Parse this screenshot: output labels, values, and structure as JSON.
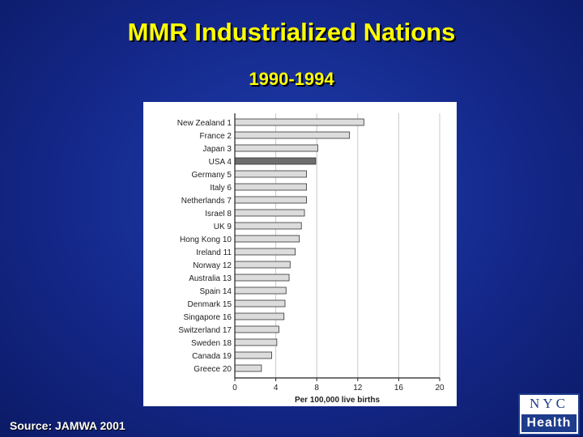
{
  "slide": {
    "title": "MMR Industrialized Nations",
    "subtitle": "1990-1994",
    "source": "Source: JAMWA 2001",
    "logo": {
      "top": "NYC",
      "bottom": "Health"
    }
  },
  "chart_data": {
    "type": "bar",
    "orientation": "horizontal",
    "xlabel": "Per 100,000 live births",
    "xlim": [
      0,
      20
    ],
    "xticks": [
      0,
      4,
      8,
      12,
      16,
      20
    ],
    "grid": true,
    "highlight": "USA 4",
    "colors": {
      "bar": "#dcdcdc",
      "highlight": "#6e6e6e",
      "outline": "#333333"
    },
    "categories": [
      "New Zealand 1",
      "France 2",
      "Japan 3",
      "USA 4",
      "Germany 5",
      "Italy 6",
      "Netherlands 7",
      "Israel 8",
      "UK 9",
      "Hong Kong 10",
      "Ireland 11",
      "Norway 12",
      "Australia 13",
      "Spain 14",
      "Denmark 15",
      "Singapore 16",
      "Switzerland 17",
      "Sweden 18",
      "Canada 19",
      "Greece 20"
    ],
    "values": [
      12.6,
      11.2,
      8.1,
      7.9,
      7.0,
      7.0,
      7.0,
      6.8,
      6.5,
      6.3,
      5.9,
      5.4,
      5.3,
      5.0,
      4.9,
      4.8,
      4.3,
      4.1,
      3.6,
      2.6
    ]
  }
}
